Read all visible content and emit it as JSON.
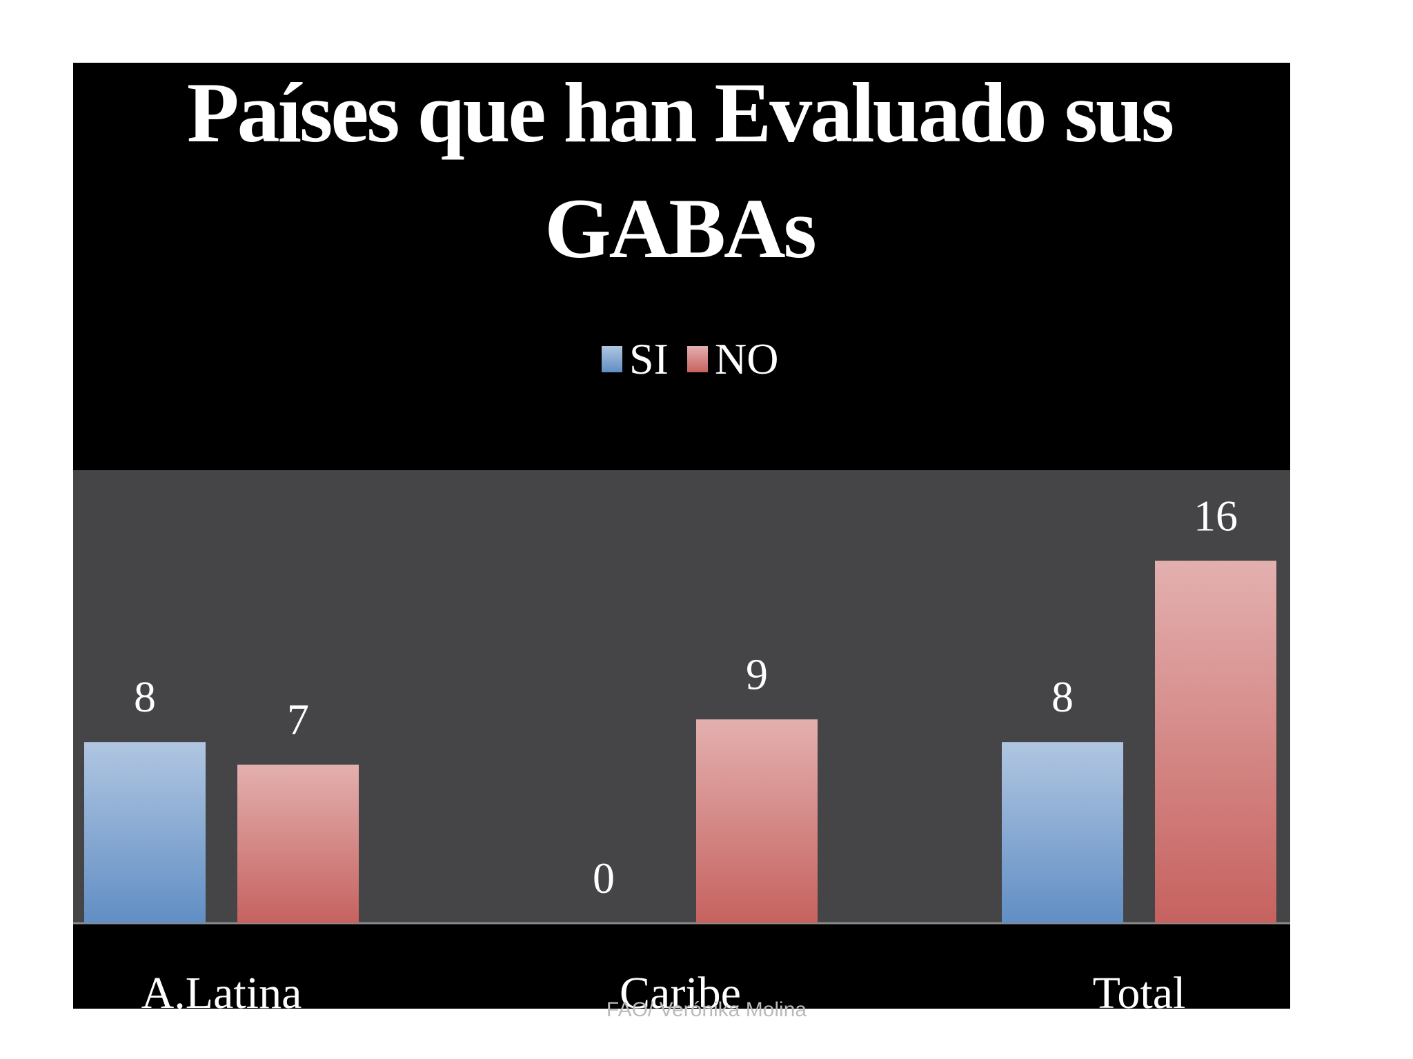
{
  "chart_data": {
    "type": "bar",
    "title": "Países que han Evaluado sus GABAs",
    "categories": [
      "A.Latina",
      "Caribe",
      "Total"
    ],
    "series": [
      {
        "name": "SI",
        "color": "#4f81bd",
        "values": [
          8,
          0,
          8
        ]
      },
      {
        "name": "NO",
        "color": "#c0504d",
        "values": [
          7,
          9,
          16
        ]
      }
    ],
    "ylim": [
      0,
      20
    ]
  },
  "footer": "FAO/ Verónika Molina"
}
